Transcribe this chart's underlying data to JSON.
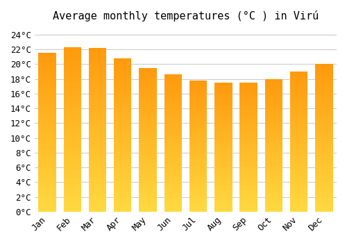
{
  "title": "Average monthly temperatures (°C ) in Virú",
  "months": [
    "Jan",
    "Feb",
    "Mar",
    "Apr",
    "May",
    "Jun",
    "Jul",
    "Aug",
    "Sep",
    "Oct",
    "Nov",
    "Dec"
  ],
  "values": [
    21.5,
    22.3,
    22.2,
    20.8,
    19.5,
    18.6,
    17.8,
    17.5,
    17.5,
    18.0,
    19.0,
    20.0
  ],
  "bar_color_top": "#FFA500",
  "bar_color_bottom": "#FFD040",
  "background_color": "#FFFFFF",
  "grid_color": "#CCCCCC",
  "ylim": [
    0,
    25
  ],
  "yticks": [
    0,
    2,
    4,
    6,
    8,
    10,
    12,
    14,
    16,
    18,
    20,
    22,
    24
  ],
  "ytick_labels": [
    "0°C",
    "2°C",
    "4°C",
    "6°C",
    "8°C",
    "10°C",
    "12°C",
    "14°C",
    "16°C",
    "18°C",
    "20°C",
    "22°C",
    "24°C"
  ],
  "title_fontsize": 11,
  "tick_fontsize": 9,
  "font_family": "monospace"
}
